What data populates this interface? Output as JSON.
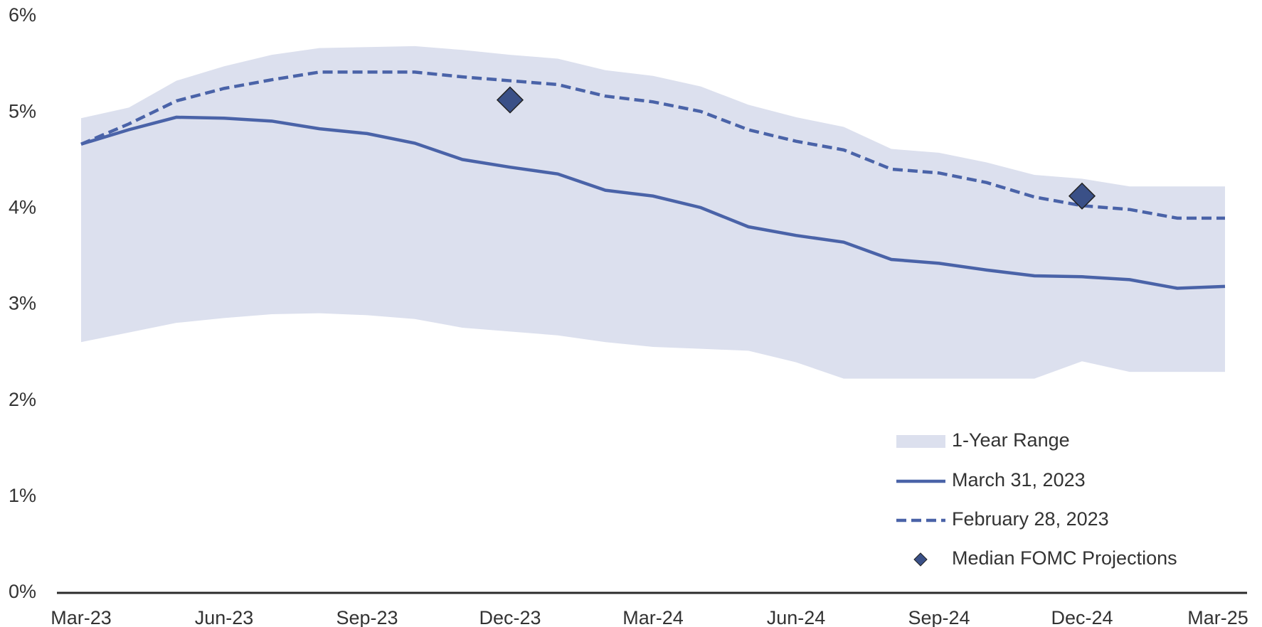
{
  "chart_data": {
    "type": "line",
    "categories": [
      "Mar-23",
      null,
      null,
      "Jun-23",
      null,
      null,
      "Sep-23",
      null,
      null,
      "Dec-23",
      null,
      null,
      "Mar-24",
      null,
      null,
      "Jun-24",
      null,
      null,
      "Sep-24",
      null,
      null,
      "Dec-24",
      null,
      null,
      "Mar-25"
    ],
    "range": {
      "name": "1-Year Range",
      "color": "#dce0ee",
      "upper": [
        4.94,
        5.05,
        5.33,
        5.48,
        5.6,
        5.67,
        5.68,
        5.69,
        5.65,
        5.6,
        5.56,
        5.44,
        5.38,
        5.27,
        5.08,
        4.95,
        4.85,
        4.62,
        4.58,
        4.48,
        4.35,
        4.31,
        4.23,
        4.23,
        4.23
      ],
      "lower": [
        2.61,
        2.71,
        2.81,
        2.86,
        2.9,
        2.91,
        2.89,
        2.85,
        2.76,
        2.72,
        2.68,
        2.61,
        2.56,
        2.54,
        2.52,
        2.4,
        2.23,
        2.23,
        2.23,
        2.23,
        2.23,
        2.41,
        2.3,
        2.3,
        2.3
      ]
    },
    "series": [
      {
        "name": "March 31, 2023",
        "color": "#4a63a8",
        "dash": false,
        "values": [
          4.67,
          4.82,
          4.95,
          4.94,
          4.91,
          4.83,
          4.78,
          4.68,
          4.51,
          4.43,
          4.36,
          4.19,
          4.13,
          4.01,
          3.81,
          3.72,
          3.65,
          3.47,
          3.43,
          3.36,
          3.3,
          3.29,
          3.26,
          3.17,
          3.19
        ]
      },
      {
        "name": "February 28, 2023",
        "color": "#4a63a8",
        "dash": true,
        "values": [
          4.67,
          4.88,
          5.12,
          5.25,
          5.34,
          5.42,
          5.42,
          5.42,
          5.37,
          5.33,
          5.29,
          5.17,
          5.11,
          5.01,
          4.82,
          4.7,
          4.61,
          4.41,
          4.37,
          4.27,
          4.12,
          4.03,
          3.99,
          3.9,
          3.9
        ]
      }
    ],
    "markers": {
      "name": "Median FOMC Projections",
      "color": "#3a5087",
      "values": [
        null,
        null,
        null,
        null,
        null,
        null,
        null,
        null,
        null,
        5.13,
        null,
        null,
        null,
        null,
        null,
        null,
        null,
        null,
        null,
        null,
        null,
        4.13,
        null,
        null,
        null
      ]
    },
    "ylim": [
      0,
      6
    ],
    "yticks": [
      {
        "value": 0,
        "label": "0%"
      },
      {
        "value": 1,
        "label": "1%"
      },
      {
        "value": 2,
        "label": "2%"
      },
      {
        "value": 3,
        "label": "3%"
      },
      {
        "value": 4,
        "label": "4%"
      },
      {
        "value": 5,
        "label": "5%"
      },
      {
        "value": 6,
        "label": "6%"
      }
    ],
    "grid": false
  }
}
